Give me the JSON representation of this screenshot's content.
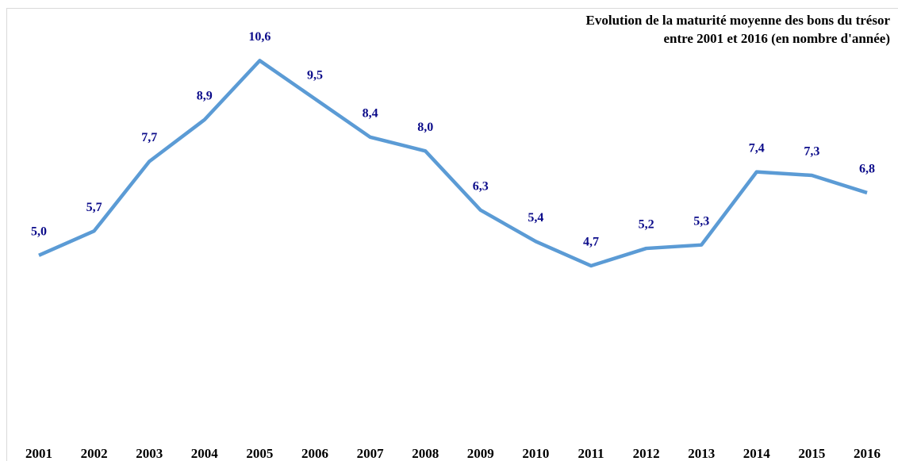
{
  "chart_data": {
    "type": "line",
    "title": [
      "Evolution de la maturité moyenne des bons du trésor",
      "entre 2001 et 2016 (en nombre d'année)"
    ],
    "categories": [
      "2001",
      "2002",
      "2003",
      "2004",
      "2005",
      "2006",
      "2007",
      "2008",
      "2009",
      "2010",
      "2011",
      "2012",
      "2013",
      "2014",
      "2015",
      "2016"
    ],
    "series": [
      {
        "name": "Maturité moyenne",
        "color": "#5b9bd5",
        "values": [
          5.0,
          5.7,
          7.7,
          8.9,
          10.6,
          9.5,
          8.4,
          8.0,
          6.3,
          5.4,
          4.7,
          5.2,
          5.3,
          7.4,
          7.3,
          6.8
        ],
        "value_labels": [
          "5,0",
          "5,7",
          "7,7",
          "8,9",
          "10,6",
          "9,5",
          "8,4",
          "8,0",
          "6,3",
          "5,4",
          "4,7",
          "5,2",
          "5,3",
          "7,4",
          "7,3",
          "6,8"
        ]
      }
    ],
    "label_color": "#0b0b8a",
    "ylim": [
      0,
      12
    ]
  }
}
